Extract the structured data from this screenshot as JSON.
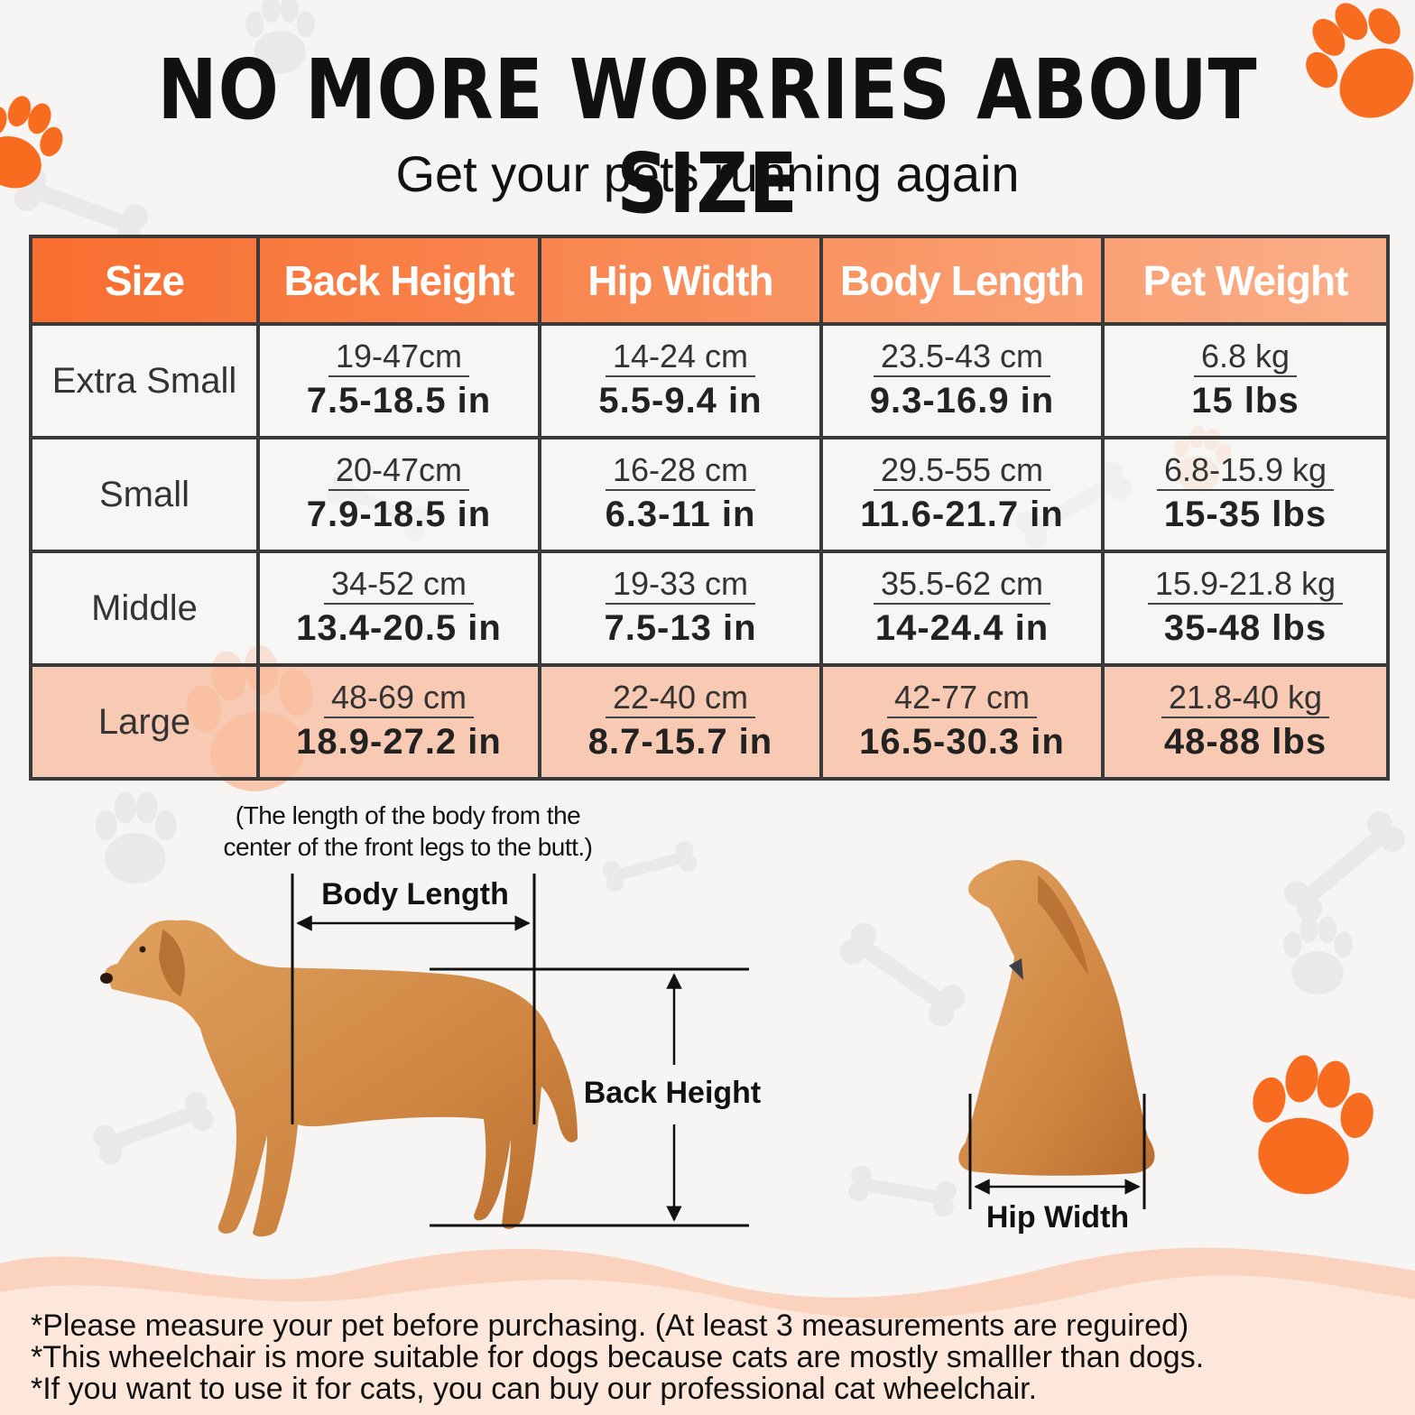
{
  "header": {
    "title": "NO MORE WORRIES ABOUT SIZE",
    "subtitle": "Get your pets running again"
  },
  "table": {
    "columns": [
      "Size",
      "Back Height",
      "Hip Width",
      "Body Length",
      "Pet Weight"
    ],
    "rows": [
      {
        "size": "Extra Small",
        "back_height": {
          "cm": "19-47cm",
          "in": "7.5-18.5 in"
        },
        "hip_width": {
          "cm": "14-24 cm",
          "in": "5.5-9.4 in"
        },
        "body_length": {
          "cm": "23.5-43 cm",
          "in": "9.3-16.9 in"
        },
        "pet_weight": {
          "kg": "6.8 kg",
          "lbs": "15 lbs"
        }
      },
      {
        "size": "Small",
        "back_height": {
          "cm": "20-47cm",
          "in": "7.9-18.5 in"
        },
        "hip_width": {
          "cm": "16-28 cm",
          "in": "6.3-11 in"
        },
        "body_length": {
          "cm": "29.5-55 cm",
          "in": "11.6-21.7 in"
        },
        "pet_weight": {
          "kg": "6.8-15.9 kg",
          "lbs": "15-35 lbs"
        }
      },
      {
        "size": "Middle",
        "back_height": {
          "cm": "34-52 cm",
          "in": "13.4-20.5 in"
        },
        "hip_width": {
          "cm": "19-33 cm",
          "in": "7.5-13 in"
        },
        "body_length": {
          "cm": "35.5-62 cm",
          "in": "14-24.4 in"
        },
        "pet_weight": {
          "kg": "15.9-21.8 kg",
          "lbs": "35-48 lbs"
        }
      },
      {
        "size": "Large",
        "back_height": {
          "cm": "48-69 cm",
          "in": "18.9-27.2 in"
        },
        "hip_width": {
          "cm": "22-40 cm",
          "in": "8.7-15.7 in"
        },
        "body_length": {
          "cm": "42-77 cm",
          "in": "16.5-30.3 in"
        },
        "pet_weight": {
          "kg": "21.8-40 kg",
          "lbs": "48-88 lbs"
        }
      }
    ]
  },
  "diagram": {
    "body_length_note_line1": "(The length of the body from the",
    "body_length_note_line2": "center of the front legs to the butt.)",
    "body_length_label": "Body Length",
    "back_height_label": "Back Height",
    "hip_width_label": "Hip Width"
  },
  "footer_notes": [
    "*Please measure your pet before purchasing. (At least 3 measurements are reguired)",
    "*This wheelchair is more suitable for dogs because cats are mostly smalller than dogs.",
    "*If you want to use it for cats, you can buy our professional cat wheelchair."
  ],
  "colors": {
    "accent_orange": "#f86c2d",
    "header_gradient_end": "#fab08a",
    "large_row": "#f9bea0",
    "border": "#3a3a3a",
    "dog_fur": "#d38a45"
  },
  "icons": [
    "paw-print-icon",
    "bone-icon"
  ]
}
